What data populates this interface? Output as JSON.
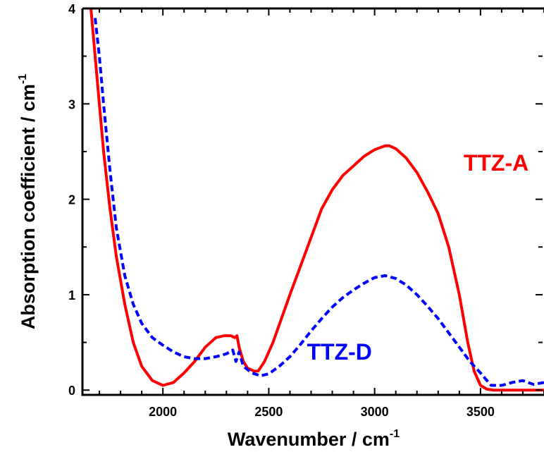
{
  "chart_data": {
    "type": "line",
    "xlabel": "Wavenumber / cm",
    "xlabel_sup": "-1",
    "ylabel": "Absorption coefficient / cm",
    "ylabel_sup": "-1",
    "xlim": [
      1620,
      3800
    ],
    "ylim": [
      -0.05,
      4.0
    ],
    "x_ticks": [
      2000,
      2500,
      3000,
      3500
    ],
    "y_ticks": [
      0,
      1,
      2,
      3,
      4
    ],
    "grid": false,
    "legend": "none",
    "series": [
      {
        "name": "TTZ-A",
        "color": "#ff0000",
        "style": "solid",
        "x": [
          1660,
          1680,
          1700,
          1720,
          1750,
          1780,
          1820,
          1860,
          1900,
          1950,
          2000,
          2050,
          2100,
          2150,
          2200,
          2250,
          2290,
          2320,
          2340,
          2350,
          2360,
          2380,
          2400,
          2430,
          2450,
          2480,
          2520,
          2560,
          2600,
          2650,
          2700,
          2750,
          2800,
          2850,
          2900,
          2950,
          3000,
          3050,
          3070,
          3100,
          3150,
          3200,
          3250,
          3300,
          3350,
          3400,
          3440,
          3470,
          3500,
          3530,
          3560,
          3600,
          3700,
          3800
        ],
        "y": [
          4.0,
          3.5,
          3.0,
          2.5,
          1.9,
          1.4,
          0.9,
          0.5,
          0.25,
          0.1,
          0.05,
          0.08,
          0.18,
          0.3,
          0.45,
          0.55,
          0.57,
          0.57,
          0.55,
          0.57,
          0.45,
          0.3,
          0.23,
          0.2,
          0.2,
          0.3,
          0.5,
          0.75,
          1.0,
          1.3,
          1.6,
          1.9,
          2.1,
          2.25,
          2.35,
          2.45,
          2.52,
          2.56,
          2.56,
          2.53,
          2.43,
          2.28,
          2.08,
          1.85,
          1.5,
          1.0,
          0.5,
          0.2,
          0.05,
          0.01,
          0.0,
          0.0,
          0.0,
          0.0
        ]
      },
      {
        "name": "TTZ-D",
        "color": "#0000ff",
        "style": "dashed",
        "x": [
          1680,
          1700,
          1720,
          1750,
          1780,
          1820,
          1860,
          1900,
          1950,
          2000,
          2050,
          2100,
          2150,
          2200,
          2250,
          2300,
          2330,
          2345,
          2360,
          2380,
          2420,
          2460,
          2500,
          2550,
          2600,
          2650,
          2700,
          2750,
          2800,
          2850,
          2900,
          2950,
          3000,
          3050,
          3100,
          3150,
          3200,
          3250,
          3300,
          3350,
          3400,
          3450,
          3500,
          3550,
          3600,
          3650,
          3700,
          3750,
          3800
        ],
        "y": [
          3.9,
          3.5,
          3.0,
          2.3,
          1.7,
          1.2,
          0.9,
          0.7,
          0.55,
          0.47,
          0.4,
          0.35,
          0.33,
          0.33,
          0.35,
          0.38,
          0.42,
          0.3,
          0.4,
          0.25,
          0.18,
          0.15,
          0.17,
          0.25,
          0.35,
          0.48,
          0.62,
          0.75,
          0.87,
          0.97,
          1.05,
          1.12,
          1.18,
          1.2,
          1.17,
          1.1,
          1.0,
          0.88,
          0.75,
          0.6,
          0.45,
          0.3,
          0.18,
          0.05,
          0.05,
          0.08,
          0.1,
          0.06,
          0.08
        ]
      }
    ],
    "annotations": [
      {
        "text": "TTZ-A",
        "color": "#ff0000",
        "x": 3420,
        "y": 2.3
      },
      {
        "text": "TTZ-D",
        "color": "#0000ff",
        "x": 2680,
        "y": 0.32
      }
    ]
  }
}
